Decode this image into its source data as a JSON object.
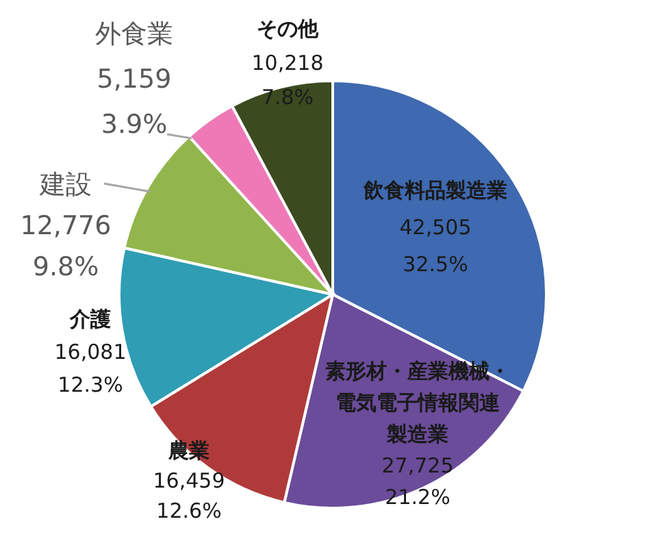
{
  "chart_data": {
    "type": "pie",
    "categories": [
      "飲食料品製造業",
      "素形材・産業機械・電気電子情報関連製造業",
      "農業",
      "介護",
      "建設",
      "外食業",
      "その他"
    ],
    "values": [
      42505,
      27725,
      16459,
      16081,
      12776,
      5159,
      10218
    ],
    "colors": [
      "#3f69b0",
      "#6b4c9a",
      "#b03a3a",
      "#2f9db4",
      "#92b64b",
      "#ee79b6",
      "#3b4a1f"
    ],
    "value_labels": [
      "42,505\n32.5%",
      "27,725\n21.2%",
      "16,459\n12.6%",
      "16,081\n12.3%",
      "12,776\n9.8%",
      "5,159\n3.9%",
      "10,218\n7.8%"
    ]
  }
}
